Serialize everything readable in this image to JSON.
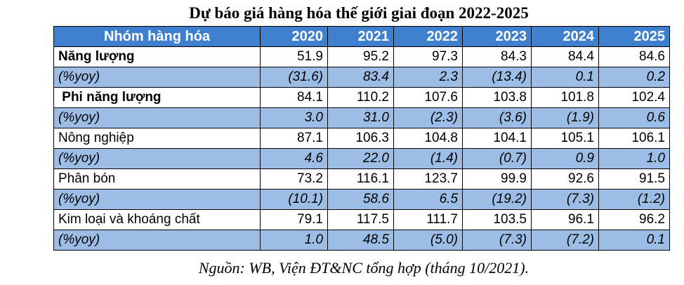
{
  "title": "Dự báo giá hàng hóa thế giới giai đoạn 2022-2025",
  "header": [
    "Nhóm hàng hóa",
    "2020",
    "2021",
    "2022",
    "2023",
    "2024",
    "2025"
  ],
  "rows": [
    {
      "label": "Năng lượng",
      "values": [
        "51.9",
        "95.2",
        "97.3",
        "84.3",
        "84.4",
        "84.6"
      ]
    },
    {
      "label": "(%yoy)",
      "values": [
        "(31.6)",
        "83.4",
        "2.3",
        "(13.4)",
        "0.1",
        "0.2"
      ]
    },
    {
      "label": " Phi năng lượng",
      "values": [
        "84.1",
        "110.2",
        "107.6",
        "103.8",
        "101.8",
        "102.4"
      ]
    },
    {
      "label": "(%yoy)",
      "values": [
        "3.0",
        "31.0",
        "(2.3)",
        "(3.6)",
        "(1.9)",
        "0.6"
      ]
    },
    {
      "label": "Nông nghiệp",
      "values": [
        "87.1",
        "106.3",
        "104.8",
        "104.1",
        "105.1",
        "106.1"
      ]
    },
    {
      "label": "(%yoy)",
      "values": [
        "4.6",
        "22.0",
        "(1.4)",
        "(0.7)",
        "0.9",
        "1.0"
      ]
    },
    {
      "label": "Phân bón",
      "values": [
        "73.2",
        "116.1",
        "123.7",
        "99.9",
        "92.6",
        "91.5"
      ]
    },
    {
      "label": "(%yoy)",
      "values": [
        "(10.1)",
        "58.6",
        "6.5",
        "(19.2)",
        "(7.3)",
        "(1.2)"
      ]
    },
    {
      "label": "Kim loại và khoáng chất",
      "values": [
        "79.1",
        "117.5",
        "111.7",
        "103.5",
        "96.1",
        "96.2"
      ]
    },
    {
      "label": "(%yoy)",
      "values": [
        "1.0",
        "48.5",
        "(5.0)",
        "(7.3)",
        "(7.2)",
        "0.1"
      ]
    }
  ],
  "source": "Nguồn: WB, Viện ĐT&NC tổng hợp (tháng 10/2021)."
}
